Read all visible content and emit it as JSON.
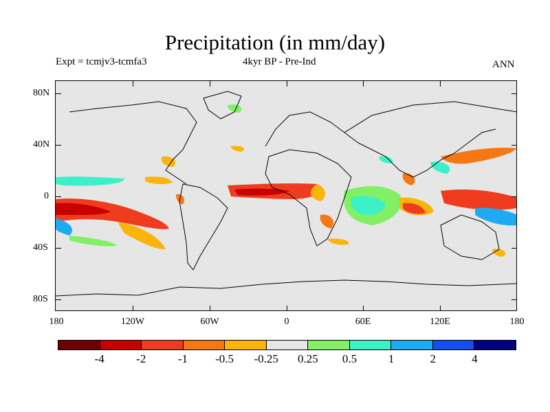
{
  "header": {
    "title": "Precipitation (in mm/day)",
    "left": "Expt = tcmjv3-tcmfa3",
    "center": "4kyr BP - Pre-Ind",
    "right": "ANN"
  },
  "axes": {
    "y_labels": [
      "80N",
      "40N",
      "0",
      "40S",
      "80S"
    ],
    "x_labels": [
      "180",
      "120W",
      "60W",
      "0",
      "60E",
      "120E",
      "180"
    ]
  },
  "colorbar": {
    "colors": [
      "#6e0000",
      "#c80000",
      "#f03c1e",
      "#f57814",
      "#fab40a",
      "#e6e6e6",
      "#82f064",
      "#3cf0c8",
      "#1eaaf0",
      "#1450f0",
      "#000082"
    ],
    "labels": [
      "-4",
      "-2",
      "-1",
      "-0.5",
      "-0.25",
      "0.25",
      "0.5",
      "1",
      "2",
      "4"
    ]
  }
}
